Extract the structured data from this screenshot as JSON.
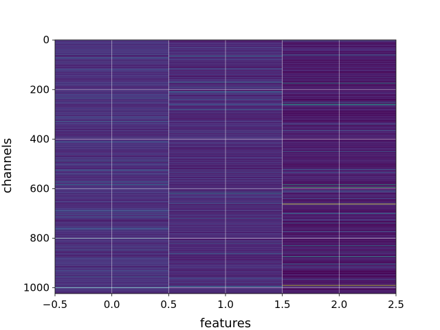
{
  "chart_data": {
    "type": "heatmap",
    "title": "",
    "xlabel": "features",
    "ylabel": "channels",
    "xlim": [
      -0.5,
      2.5
    ],
    "ylim": [
      1023.5,
      -0.5
    ],
    "y_inverted": true,
    "grid": true,
    "colormap": "viridis",
    "n_rows": 1024,
    "columns": [
      0,
      1,
      2
    ],
    "x_ticks": [
      -0.5,
      0.0,
      0.5,
      1.0,
      1.5,
      2.0,
      2.5
    ],
    "x_tick_labels": [
      "−0.5",
      "0.0",
      "0.5",
      "1.0",
      "1.5",
      "2.0",
      "2.5"
    ],
    "y_ticks": [
      0,
      200,
      400,
      600,
      800,
      1000
    ],
    "y_tick_labels": [
      "0",
      "200",
      "400",
      "600",
      "800",
      "1000"
    ],
    "background_level": [
      0.12,
      0.1,
      0.05
    ],
    "bright_rows": [
      {
        "column": 0,
        "row": 525,
        "level": 0.35
      },
      {
        "column": 0,
        "row": 800,
        "level": 0.45
      },
      {
        "column": 0,
        "row": 715,
        "level": 0.3
      },
      {
        "column": 0,
        "row": 955,
        "level": 0.28
      },
      {
        "column": 1,
        "row": 65,
        "level": 0.4
      },
      {
        "column": 1,
        "row": 170,
        "level": 0.38
      },
      {
        "column": 1,
        "row": 260,
        "level": 0.32
      },
      {
        "column": 1,
        "row": 280,
        "level": 0.35
      },
      {
        "column": 1,
        "row": 620,
        "level": 0.45
      },
      {
        "column": 1,
        "row": 995,
        "level": 0.4
      },
      {
        "column": 2,
        "row": 175,
        "level": 0.5
      },
      {
        "column": 2,
        "row": 258,
        "level": 0.55
      },
      {
        "column": 2,
        "row": 262,
        "level": 0.5
      },
      {
        "column": 2,
        "row": 585,
        "level": 0.6
      },
      {
        "column": 2,
        "row": 595,
        "level": 0.7
      },
      {
        "column": 2,
        "row": 662,
        "level": 0.95
      },
      {
        "column": 2,
        "row": 700,
        "level": 0.4
      },
      {
        "column": 2,
        "row": 830,
        "level": 0.45
      },
      {
        "column": 2,
        "row": 875,
        "level": 0.55
      },
      {
        "column": 2,
        "row": 905,
        "level": 0.4
      },
      {
        "column": 2,
        "row": 990,
        "level": 0.9
      },
      {
        "column": 2,
        "row": 60,
        "level": 0.35
      },
      {
        "column": 2,
        "row": 450,
        "level": 0.3
      }
    ]
  }
}
